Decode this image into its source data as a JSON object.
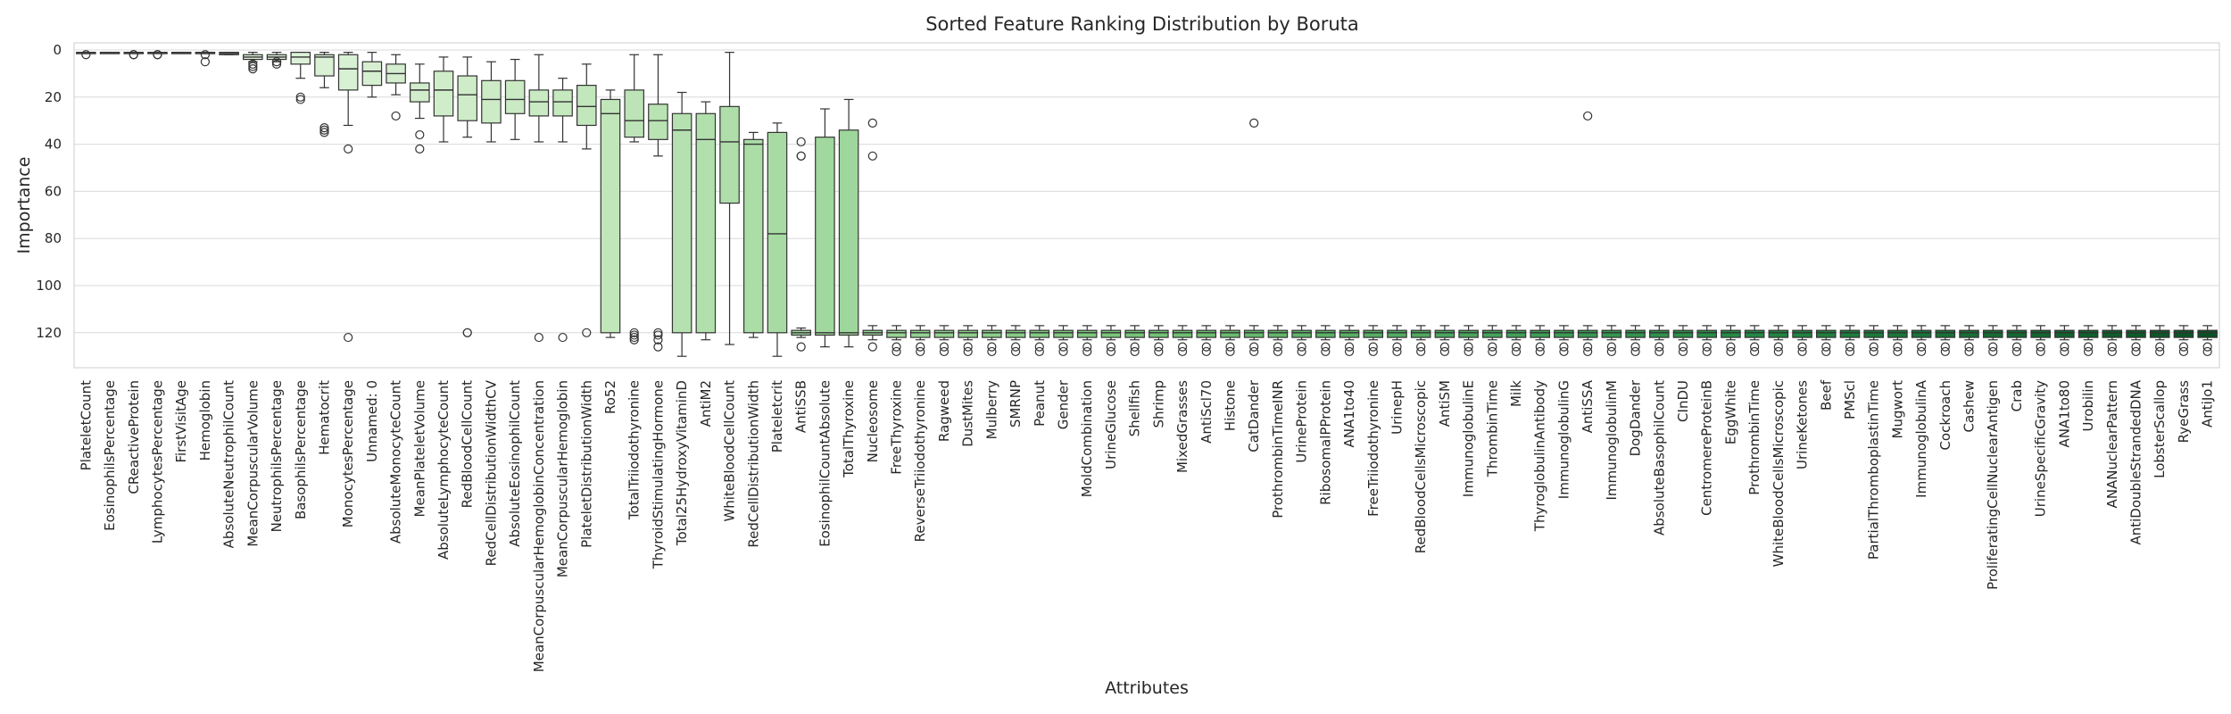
{
  "chart_data": {
    "type": "box",
    "title": "Sorted Feature Ranking Distribution by Boruta",
    "xlabel": "Attributes",
    "ylabel": "Importance",
    "ylim": [
      0,
      134
    ],
    "y_inverted": true,
    "yticks": [
      0,
      20,
      40,
      60,
      80,
      100,
      120
    ],
    "grid": "horizontal",
    "color_gradient": [
      "#f7fcf5",
      "#c7e9c0",
      "#74c476",
      "#238b45",
      "#00441b"
    ],
    "categories": [
      "PlateletCount",
      "EosinophilsPercentage",
      "CReactiveProtein",
      "LymphocytesPercentage",
      "FirstVisitAge",
      "Hemoglobin",
      "AbsoluteNeutrophilCount",
      "MeanCorpuscularVolume",
      "NeutrophilsPercentage",
      "BasophilsPercentage",
      "Hematocrit",
      "MonocytesPercentage",
      "Unnamed: 0",
      "AbsoluteMonocyteCount",
      "MeanPlateletVolume",
      "AbsoluteLymphocyteCount",
      "RedBloodCellCount",
      "RedCellDistributionWidthCV",
      "AbsoluteEosinophilCount",
      "MeanCorpuscularHemoglobinConcentration",
      "MeanCorpuscularHemoglobin",
      "PlateletDistributionWidth",
      "Ro52",
      "TotalTriiodothyronine",
      "ThyroidStimulatingHormone",
      "Total25HydroxyVitaminD",
      "AntiM2",
      "WhiteBloodCellCount",
      "RedCellDistributionWidth",
      "Plateletcrit",
      "AntiSSB",
      "EosinophilCountAbsolute",
      "TotalThyroxine",
      "Nucleosome",
      "FreeThyroxine",
      "ReverseTriiodothyronine",
      "Ragweed",
      "DustMites",
      "Mulberry",
      "SMRNP",
      "Peanut",
      "Gender",
      "MoldCombination",
      "UrineGlucose",
      "Shellfish",
      "Shrimp",
      "MixedGrasses",
      "AntiScl70",
      "Histone",
      "CatDander",
      "ProthrombinTimeINR",
      "UrineProtein",
      "RibosomalPProtein",
      "ANA1to40",
      "FreeTriiodothyronine",
      "UrinepH",
      "RedBloodCellsMicroscopic",
      "AntiSM",
      "ImmunoglobulinE",
      "ThrombinTime",
      "Milk",
      "ThyroglobulinAntibody",
      "ImmunoglobulinG",
      "AntiSSA",
      "ImmunoglobulinM",
      "DogDander",
      "AbsoluteBasophilCount",
      "CInDU",
      "CentromereProteinB",
      "EggWhite",
      "ProthrombinTime",
      "WhiteBloodCellsMicroscopic",
      "UrineKetones",
      "Beef",
      "PMScl",
      "PartialThromboplastinTime",
      "Mugwort",
      "ImmunoglobulinA",
      "Cockroach",
      "Cashew",
      "ProliferatingCellNuclearAntigen",
      "Crab",
      "UrineSpecificGravity",
      "ANA1to80",
      "Urobilin",
      "ANANuclearPattern",
      "AntiDoubleStrandedDNA",
      "LobsterScallop",
      "RyeGrass",
      "AntiJo1"
    ],
    "boxes": [
      {
        "whisker_low": 1,
        "q1": 1,
        "median": 1,
        "q3": 1,
        "whisker_high": 1,
        "outliers": [
          2
        ]
      },
      {
        "whisker_low": 1,
        "q1": 1,
        "median": 1,
        "q3": 1,
        "whisker_high": 1,
        "outliers": []
      },
      {
        "whisker_low": 1,
        "q1": 1,
        "median": 1,
        "q3": 1,
        "whisker_high": 1,
        "outliers": [
          2,
          2
        ]
      },
      {
        "whisker_low": 1,
        "q1": 1,
        "median": 1,
        "q3": 1,
        "whisker_high": 1,
        "outliers": [
          2,
          2
        ]
      },
      {
        "whisker_low": 1,
        "q1": 1,
        "median": 1,
        "q3": 1,
        "whisker_high": 1,
        "outliers": []
      },
      {
        "whisker_low": 1,
        "q1": 1,
        "median": 1,
        "q3": 1,
        "whisker_high": 1,
        "outliers": [
          2,
          5
        ]
      },
      {
        "whisker_low": 1,
        "q1": 1,
        "median": 1.5,
        "q3": 2,
        "whisker_high": 2,
        "outliers": []
      },
      {
        "whisker_low": 1,
        "q1": 2,
        "median": 3,
        "q3": 4,
        "whisker_high": 5,
        "outliers": [
          6,
          7,
          8
        ]
      },
      {
        "whisker_low": 1,
        "q1": 2,
        "median": 3,
        "q3": 4,
        "whisker_high": 5,
        "outliers": [
          5,
          6
        ]
      },
      {
        "whisker_low": 1,
        "q1": 1,
        "median": 3,
        "q3": 6,
        "whisker_high": 12,
        "outliers": [
          20,
          21
        ]
      },
      {
        "whisker_low": 1,
        "q1": 2,
        "median": 3,
        "q3": 11,
        "whisker_high": 16,
        "outliers": [
          33,
          34,
          35
        ]
      },
      {
        "whisker_low": 1,
        "q1": 2,
        "median": 8,
        "q3": 17,
        "whisker_high": 32,
        "outliers": [
          42,
          122
        ]
      },
      {
        "whisker_low": 1,
        "q1": 5,
        "median": 9,
        "q3": 15,
        "whisker_high": 20,
        "outliers": []
      },
      {
        "whisker_low": 2,
        "q1": 6,
        "median": 10,
        "q3": 14,
        "whisker_high": 19,
        "outliers": [
          28
        ]
      },
      {
        "whisker_low": 6,
        "q1": 14,
        "median": 17,
        "q3": 22,
        "whisker_high": 29,
        "outliers": [
          36,
          42
        ]
      },
      {
        "whisker_low": 3,
        "q1": 9,
        "median": 17,
        "q3": 28,
        "whisker_high": 39,
        "outliers": []
      },
      {
        "whisker_low": 3,
        "q1": 11,
        "median": 19,
        "q3": 30,
        "whisker_high": 37,
        "outliers": [
          120,
          120
        ]
      },
      {
        "whisker_low": 5,
        "q1": 13,
        "median": 21,
        "q3": 31,
        "whisker_high": 39,
        "outliers": []
      },
      {
        "whisker_low": 4,
        "q1": 13,
        "median": 21,
        "q3": 27,
        "whisker_high": 38,
        "outliers": []
      },
      {
        "whisker_low": 2,
        "q1": 17,
        "median": 22,
        "q3": 28,
        "whisker_high": 39,
        "outliers": [
          122
        ]
      },
      {
        "whisker_low": 12,
        "q1": 17,
        "median": 22,
        "q3": 28,
        "whisker_high": 39,
        "outliers": [
          122
        ]
      },
      {
        "whisker_low": 6,
        "q1": 15,
        "median": 24,
        "q3": 32,
        "whisker_high": 42,
        "outliers": [
          120
        ]
      },
      {
        "whisker_low": 17,
        "q1": 21,
        "median": 27,
        "q3": 120,
        "whisker_high": 122,
        "outliers": []
      },
      {
        "whisker_low": 2,
        "q1": 17,
        "median": 30,
        "q3": 37,
        "whisker_high": 39,
        "outliers": [
          120,
          121,
          122,
          123
        ]
      },
      {
        "whisker_low": 2,
        "q1": 23,
        "median": 30,
        "q3": 38,
        "whisker_high": 45,
        "outliers": [
          120,
          121,
          123,
          126
        ]
      },
      {
        "whisker_low": 18,
        "q1": 27,
        "median": 34,
        "q3": 120,
        "whisker_high": 130,
        "outliers": []
      },
      {
        "whisker_low": 22,
        "q1": 27,
        "median": 38,
        "q3": 120,
        "whisker_high": 123,
        "outliers": []
      },
      {
        "whisker_low": 1,
        "q1": 24,
        "median": 39,
        "q3": 65,
        "whisker_high": 125,
        "outliers": []
      },
      {
        "whisker_low": 35,
        "q1": 38,
        "median": 40,
        "q3": 120,
        "whisker_high": 122,
        "outliers": []
      },
      {
        "whisker_low": 31,
        "q1": 35,
        "median": 78,
        "q3": 120,
        "whisker_high": 130,
        "outliers": []
      },
      {
        "whisker_low": 118,
        "q1": 119,
        "median": 120,
        "q3": 121,
        "whisker_high": 122,
        "outliers": [
          39,
          45,
          45,
          126
        ]
      },
      {
        "whisker_low": 25,
        "q1": 37,
        "median": 120,
        "q3": 121,
        "whisker_high": 126,
        "outliers": []
      },
      {
        "whisker_low": 21,
        "q1": 34,
        "median": 120,
        "q3": 121,
        "whisker_high": 126,
        "outliers": []
      },
      {
        "whisker_low": 117,
        "q1": 119,
        "median": 120,
        "q3": 121,
        "whisker_high": 123,
        "outliers": [
          31,
          45,
          126
        ]
      },
      {
        "whisker_low": 117,
        "q1": 119,
        "median": 120,
        "q3": 122,
        "whisker_high": 123,
        "outliers": [
          126,
          128
        ]
      },
      {
        "whisker_low": 117,
        "q1": 119,
        "median": 120,
        "q3": 122,
        "whisker_high": 123,
        "outliers": [
          126,
          128
        ]
      },
      {
        "whisker_low": 117,
        "q1": 119,
        "median": 120,
        "q3": 122,
        "whisker_high": 123,
        "outliers": [
          126,
          128
        ]
      },
      {
        "whisker_low": 117,
        "q1": 119,
        "median": 120,
        "q3": 122,
        "whisker_high": 123,
        "outliers": [
          126,
          128
        ]
      },
      {
        "whisker_low": 117,
        "q1": 119,
        "median": 120,
        "q3": 122,
        "whisker_high": 123,
        "outliers": [
          126,
          128
        ]
      },
      {
        "whisker_low": 117,
        "q1": 119,
        "median": 120,
        "q3": 122,
        "whisker_high": 123,
        "outliers": [
          126,
          128
        ]
      },
      {
        "whisker_low": 117,
        "q1": 119,
        "median": 120,
        "q3": 122,
        "whisker_high": 123,
        "outliers": [
          126,
          128
        ]
      },
      {
        "whisker_low": 117,
        "q1": 119,
        "median": 120,
        "q3": 122,
        "whisker_high": 123,
        "outliers": [
          126,
          128
        ]
      },
      {
        "whisker_low": 117,
        "q1": 119,
        "median": 120,
        "q3": 122,
        "whisker_high": 123,
        "outliers": [
          126,
          128
        ]
      },
      {
        "whisker_low": 117,
        "q1": 119,
        "median": 120,
        "q3": 122,
        "whisker_high": 123,
        "outliers": [
          126,
          128
        ]
      },
      {
        "whisker_low": 117,
        "q1": 119,
        "median": 120,
        "q3": 122,
        "whisker_high": 123,
        "outliers": [
          126,
          128
        ]
      },
      {
        "whisker_low": 117,
        "q1": 119,
        "median": 120,
        "q3": 122,
        "whisker_high": 123,
        "outliers": [
          126,
          128
        ]
      },
      {
        "whisker_low": 117,
        "q1": 119,
        "median": 120,
        "q3": 122,
        "whisker_high": 123,
        "outliers": [
          126,
          128
        ]
      },
      {
        "whisker_low": 117,
        "q1": 119,
        "median": 120,
        "q3": 122,
        "whisker_high": 123,
        "outliers": [
          126,
          128
        ]
      },
      {
        "whisker_low": 117,
        "q1": 119,
        "median": 120,
        "q3": 122,
        "whisker_high": 123,
        "outliers": [
          126,
          128
        ]
      },
      {
        "whisker_low": 117,
        "q1": 119,
        "median": 120,
        "q3": 122,
        "whisker_high": 123,
        "outliers": [
          31,
          126,
          128
        ]
      },
      {
        "whisker_low": 117,
        "q1": 119,
        "median": 120,
        "q3": 122,
        "whisker_high": 123,
        "outliers": [
          126,
          128
        ]
      },
      {
        "whisker_low": 117,
        "q1": 119,
        "median": 120,
        "q3": 122,
        "whisker_high": 123,
        "outliers": [
          126,
          128
        ]
      },
      {
        "whisker_low": 117,
        "q1": 119,
        "median": 120,
        "q3": 122,
        "whisker_high": 123,
        "outliers": [
          126,
          128
        ]
      },
      {
        "whisker_low": 117,
        "q1": 119,
        "median": 120,
        "q3": 122,
        "whisker_high": 123,
        "outliers": [
          126,
          128
        ]
      },
      {
        "whisker_low": 117,
        "q1": 119,
        "median": 120,
        "q3": 122,
        "whisker_high": 123,
        "outliers": [
          126,
          128
        ]
      },
      {
        "whisker_low": 117,
        "q1": 119,
        "median": 120,
        "q3": 122,
        "whisker_high": 123,
        "outliers": [
          126,
          128
        ]
      },
      {
        "whisker_low": 117,
        "q1": 119,
        "median": 120,
        "q3": 122,
        "whisker_high": 123,
        "outliers": [
          126,
          128
        ]
      },
      {
        "whisker_low": 117,
        "q1": 119,
        "median": 120,
        "q3": 122,
        "whisker_high": 123,
        "outliers": [
          126,
          128
        ]
      },
      {
        "whisker_low": 117,
        "q1": 119,
        "median": 120,
        "q3": 122,
        "whisker_high": 123,
        "outliers": [
          126,
          128
        ]
      },
      {
        "whisker_low": 117,
        "q1": 119,
        "median": 120,
        "q3": 122,
        "whisker_high": 123,
        "outliers": [
          126,
          128
        ]
      },
      {
        "whisker_low": 117,
        "q1": 119,
        "median": 120,
        "q3": 122,
        "whisker_high": 123,
        "outliers": [
          126,
          128
        ]
      },
      {
        "whisker_low": 117,
        "q1": 119,
        "median": 120,
        "q3": 122,
        "whisker_high": 123,
        "outliers": [
          126,
          128
        ]
      },
      {
        "whisker_low": 117,
        "q1": 119,
        "median": 120,
        "q3": 122,
        "whisker_high": 123,
        "outliers": [
          126,
          128
        ]
      },
      {
        "whisker_low": 117,
        "q1": 119,
        "median": 120,
        "q3": 122,
        "whisker_high": 123,
        "outliers": [
          28,
          126,
          128
        ]
      },
      {
        "whisker_low": 117,
        "q1": 119,
        "median": 120,
        "q3": 122,
        "whisker_high": 123,
        "outliers": [
          126,
          128
        ]
      },
      {
        "whisker_low": 117,
        "q1": 119,
        "median": 120,
        "q3": 122,
        "whisker_high": 123,
        "outliers": [
          126,
          128
        ]
      },
      {
        "whisker_low": 117,
        "q1": 119,
        "median": 120,
        "q3": 122,
        "whisker_high": 123,
        "outliers": [
          126,
          128
        ]
      },
      {
        "whisker_low": 117,
        "q1": 119,
        "median": 120,
        "q3": 122,
        "whisker_high": 123,
        "outliers": [
          126,
          128
        ]
      },
      {
        "whisker_low": 117,
        "q1": 119,
        "median": 120,
        "q3": 122,
        "whisker_high": 123,
        "outliers": [
          126,
          128
        ]
      },
      {
        "whisker_low": 117,
        "q1": 119,
        "median": 120,
        "q3": 122,
        "whisker_high": 123,
        "outliers": [
          126,
          128
        ]
      },
      {
        "whisker_low": 117,
        "q1": 119,
        "median": 120,
        "q3": 122,
        "whisker_high": 123,
        "outliers": [
          126,
          128
        ]
      },
      {
        "whisker_low": 117,
        "q1": 119,
        "median": 120,
        "q3": 122,
        "whisker_high": 123,
        "outliers": [
          126,
          128
        ]
      },
      {
        "whisker_low": 117,
        "q1": 119,
        "median": 120,
        "q3": 122,
        "whisker_high": 123,
        "outliers": [
          126,
          128
        ]
      },
      {
        "whisker_low": 117,
        "q1": 119,
        "median": 120,
        "q3": 122,
        "whisker_high": 123,
        "outliers": [
          126,
          128
        ]
      },
      {
        "whisker_low": 117,
        "q1": 119,
        "median": 120,
        "q3": 122,
        "whisker_high": 123,
        "outliers": [
          126,
          128
        ]
      },
      {
        "whisker_low": 117,
        "q1": 119,
        "median": 120,
        "q3": 122,
        "whisker_high": 123,
        "outliers": [
          126,
          128
        ]
      },
      {
        "whisker_low": 117,
        "q1": 119,
        "median": 120,
        "q3": 122,
        "whisker_high": 123,
        "outliers": [
          126,
          128
        ]
      },
      {
        "whisker_low": 117,
        "q1": 119,
        "median": 120,
        "q3": 122,
        "whisker_high": 123,
        "outliers": [
          126,
          128
        ]
      },
      {
        "whisker_low": 117,
        "q1": 119,
        "median": 120,
        "q3": 122,
        "whisker_high": 123,
        "outliers": [
          126,
          128
        ]
      },
      {
        "whisker_low": 117,
        "q1": 119,
        "median": 120,
        "q3": 122,
        "whisker_high": 123,
        "outliers": [
          126,
          128
        ]
      },
      {
        "whisker_low": 117,
        "q1": 119,
        "median": 120,
        "q3": 122,
        "whisker_high": 123,
        "outliers": [
          126,
          128
        ]
      },
      {
        "whisker_low": 117,
        "q1": 119,
        "median": 120,
        "q3": 122,
        "whisker_high": 123,
        "outliers": [
          126,
          128
        ]
      },
      {
        "whisker_low": 117,
        "q1": 119,
        "median": 120,
        "q3": 122,
        "whisker_high": 123,
        "outliers": [
          126,
          128
        ]
      },
      {
        "whisker_low": 117,
        "q1": 119,
        "median": 120,
        "q3": 122,
        "whisker_high": 123,
        "outliers": [
          126,
          128
        ]
      },
      {
        "whisker_low": 117,
        "q1": 119,
        "median": 120,
        "q3": 122,
        "whisker_high": 123,
        "outliers": [
          126,
          128
        ]
      },
      {
        "whisker_low": 117,
        "q1": 119,
        "median": 120,
        "q3": 122,
        "whisker_high": 123,
        "outliers": [
          126,
          128
        ]
      },
      {
        "whisker_low": 117,
        "q1": 119,
        "median": 120,
        "q3": 122,
        "whisker_high": 123,
        "outliers": [
          126,
          128
        ]
      },
      {
        "whisker_low": 117,
        "q1": 119,
        "median": 120,
        "q3": 122,
        "whisker_high": 123,
        "outliers": [
          126,
          128
        ]
      },
      {
        "whisker_low": 117,
        "q1": 119,
        "median": 120,
        "q3": 122,
        "whisker_high": 123,
        "outliers": [
          126,
          128
        ]
      },
      {
        "whisker_low": 117,
        "q1": 119,
        "median": 120,
        "q3": 122,
        "whisker_high": 123,
        "outliers": [
          126,
          128
        ]
      }
    ]
  }
}
